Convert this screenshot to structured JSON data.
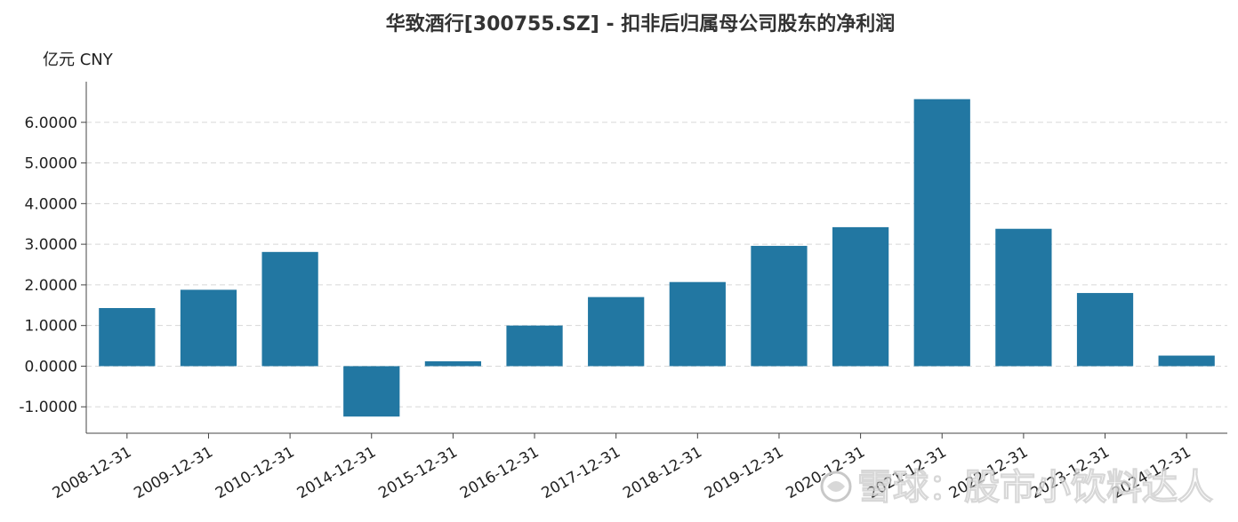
{
  "watermark": {
    "text": "雪球：股市小饮料达人",
    "icon": "snowball-logo-icon"
  },
  "colors": {
    "bar": "#2277a2",
    "grid": "#d8d8d8",
    "axis": "#444444",
    "title": "#333333"
  },
  "chart_data": {
    "type": "bar",
    "title": "华致酒行[300755.SZ] - 扣非后归属母公司股东的净利润",
    "unit_label": "亿元  CNY",
    "xlabel": "",
    "ylabel": "",
    "categories": [
      "2008-12-31",
      "2009-12-31",
      "2010-12-31",
      "2014-12-31",
      "2015-12-31",
      "2016-12-31",
      "2017-12-31",
      "2018-12-31",
      "2019-12-31",
      "2020-12-31",
      "2021-12-31",
      "2022-12-31",
      "2023-12-31",
      "2024-12-31"
    ],
    "values": [
      1.43,
      1.88,
      2.81,
      -1.24,
      0.12,
      1.0,
      1.7,
      2.07,
      2.96,
      3.42,
      6.57,
      3.38,
      1.8,
      0.26
    ],
    "yticks": [
      -1.0,
      0.0,
      1.0,
      2.0,
      3.0,
      4.0,
      5.0,
      6.0
    ],
    "ytick_labels": [
      "-1.0000",
      "0.0000",
      "1.0000",
      "2.0000",
      "3.0000",
      "4.0000",
      "5.0000",
      "6.0000"
    ],
    "ylim": [
      -1.65,
      7.0
    ],
    "grid": true,
    "legend": "none"
  }
}
